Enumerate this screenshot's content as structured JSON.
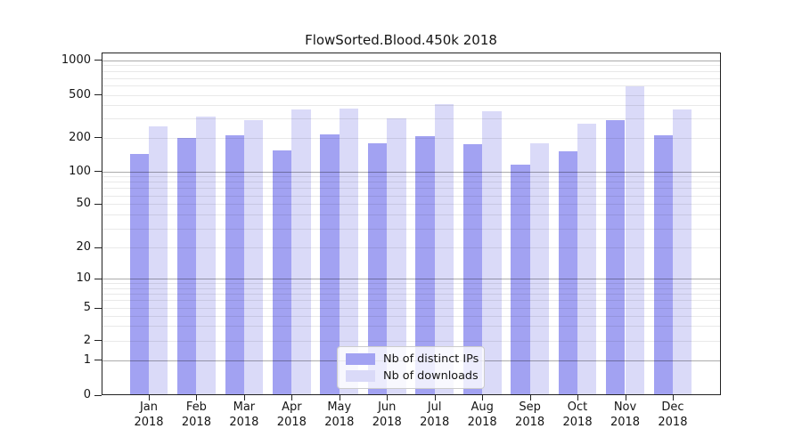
{
  "chart_data": {
    "type": "bar",
    "title": "FlowSorted.Blood.450k 2018",
    "categories": [
      "Jan",
      "Feb",
      "Mar",
      "Apr",
      "May",
      "Jun",
      "Jul",
      "Aug",
      "Sep",
      "Oct",
      "Nov",
      "Dec"
    ],
    "x_tick_label_line2": "2018",
    "series": [
      {
        "name": "Nb of distinct IPs",
        "color": "#a2a2f2",
        "values": [
          143,
          197,
          208,
          153,
          212,
          178,
          206,
          174,
          114,
          152,
          292,
          210
        ]
      },
      {
        "name": "Nb of downloads",
        "color": "#dadaf8",
        "values": [
          255,
          312,
          293,
          362,
          375,
          300,
          412,
          350,
          178,
          268,
          590,
          365
        ]
      }
    ],
    "y_axis": {
      "scale": "symlog",
      "ticks": [
        0,
        1,
        2,
        5,
        10,
        20,
        50,
        100,
        200,
        500,
        1000
      ],
      "minor_gridlines": [
        3,
        4,
        6,
        7,
        8,
        9,
        30,
        40,
        60,
        70,
        80,
        90,
        300,
        400,
        600,
        700,
        800,
        900
      ],
      "range_top": 1175
    },
    "legend": {
      "position": "lower center"
    },
    "grid": true,
    "colors": {
      "major_grid": "rgba(0,0,0,0.33)",
      "minor_grid": "rgba(0,0,0,0.085)",
      "spine": "#222222",
      "text": "#151515",
      "background": "#ffffff"
    }
  }
}
